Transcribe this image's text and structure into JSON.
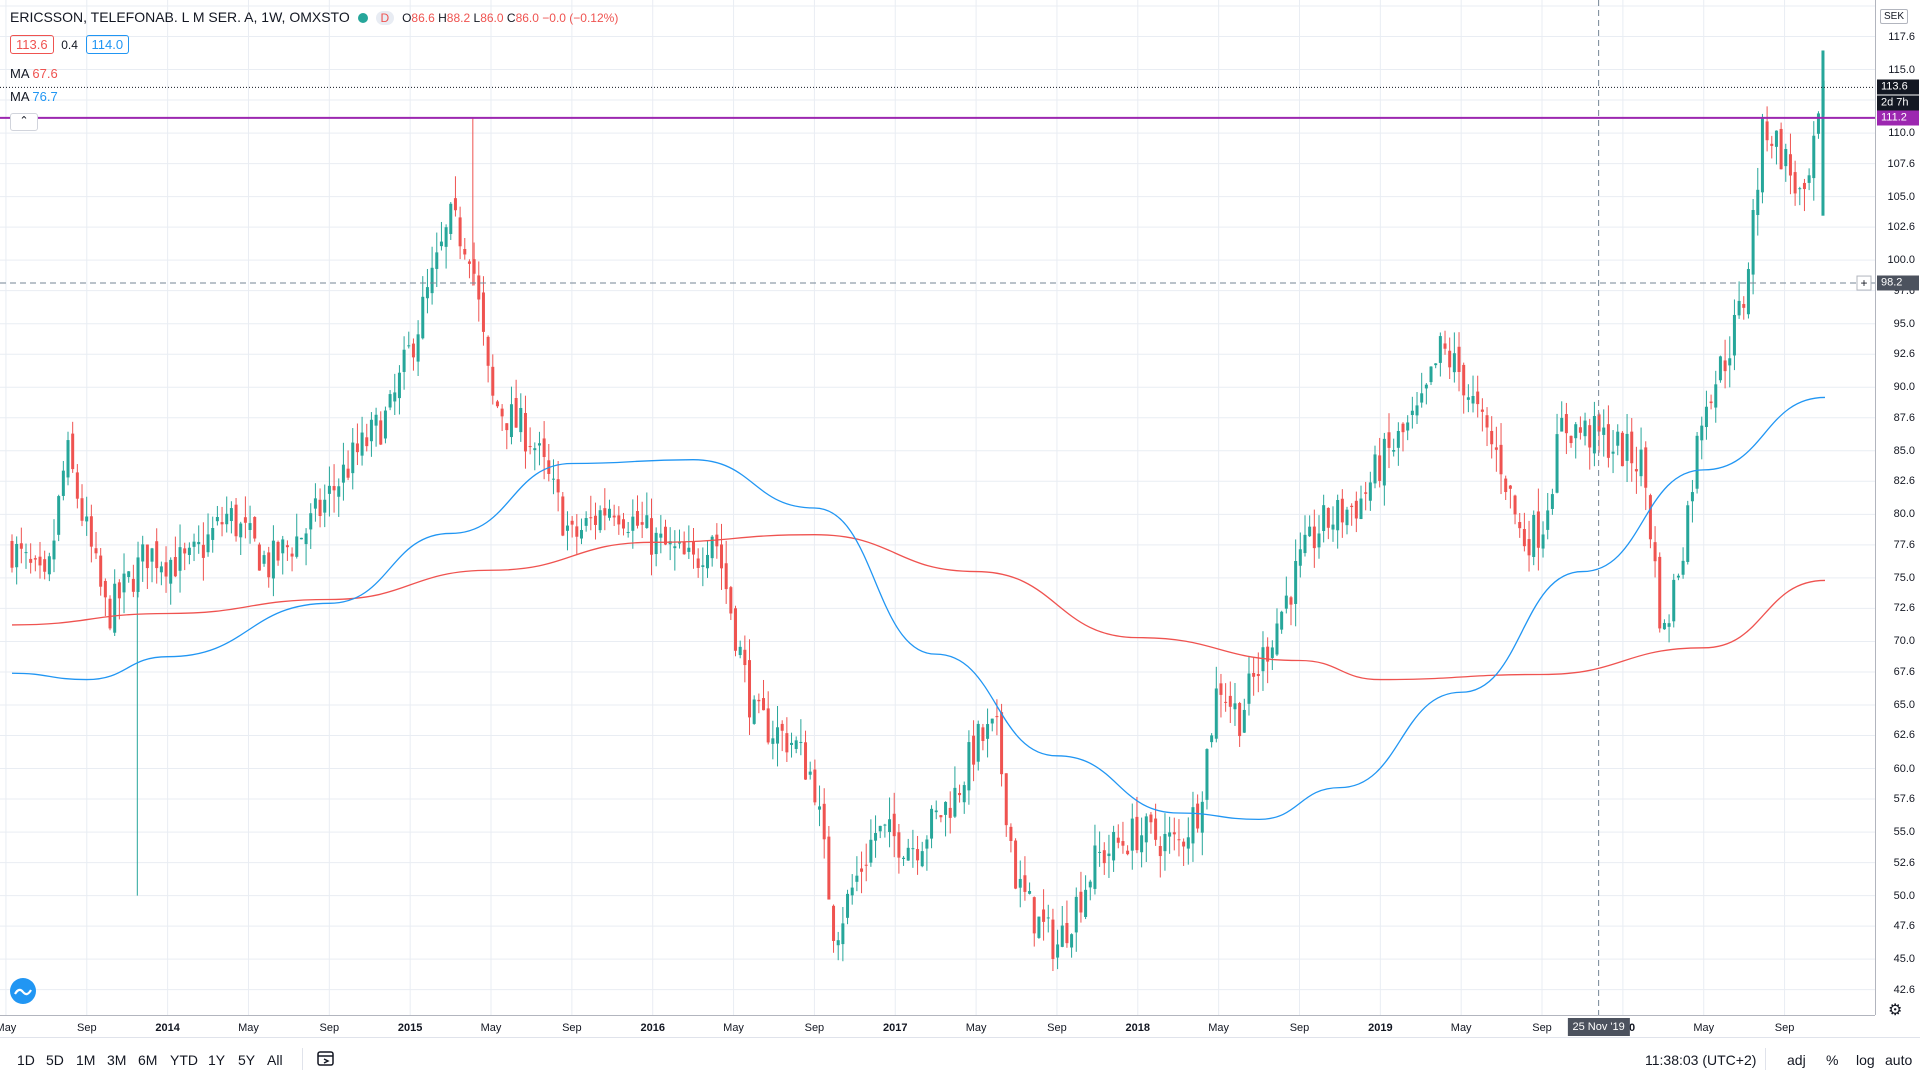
{
  "legend": {
    "symbol": "ERICSSON, TELEFONAB. L M SER. A",
    "interval": "1W",
    "exchange": "OMXSTO",
    "interval_badge": "D",
    "open_key": "O",
    "open": "86.6",
    "high_key": "H",
    "high": "88.2",
    "low_key": "L",
    "low": "86.0",
    "close_key": "C",
    "close": "86.0",
    "change": "−0.0 (−0.12%)",
    "bid": "113.6",
    "spread": "0.4",
    "ask": "114.0",
    "ma1_label": "MA",
    "ma1_value": "67.6",
    "ma1_color": "#ef5350",
    "ma2_label": "MA",
    "ma2_value": "76.7",
    "ma2_color": "#2196f3",
    "collapse_icon": "chevron-up-icon"
  },
  "price_axis": {
    "currency": "SEK",
    "ticks": [
      "120.0",
      "117.6",
      "115.0",
      "112.6",
      "110.0",
      "107.6",
      "105.0",
      "102.6",
      "100.0",
      "97.6",
      "95.0",
      "92.6",
      "90.0",
      "87.6",
      "85.0",
      "82.6",
      "80.0",
      "77.6",
      "75.0",
      "72.6",
      "70.0",
      "67.6",
      "65.0",
      "62.6",
      "60.0",
      "57.6",
      "55.0",
      "52.6",
      "50.0",
      "47.6",
      "45.0",
      "42.6"
    ],
    "last_price_label": "113.6",
    "countdown_label": "2d 7h",
    "hline_label": "111.2",
    "cursor_label": "98.2",
    "settings_icon": "gear-icon"
  },
  "time_axis": {
    "ticks": [
      {
        "label": "May",
        "year": false
      },
      {
        "label": "Sep",
        "year": false
      },
      {
        "label": "2014",
        "year": true
      },
      {
        "label": "May",
        "year": false
      },
      {
        "label": "Sep",
        "year": false
      },
      {
        "label": "2015",
        "year": true
      },
      {
        "label": "May",
        "year": false
      },
      {
        "label": "Sep",
        "year": false
      },
      {
        "label": "2016",
        "year": true
      },
      {
        "label": "May",
        "year": false
      },
      {
        "label": "Sep",
        "year": false
      },
      {
        "label": "2017",
        "year": true
      },
      {
        "label": "May",
        "year": false
      },
      {
        "label": "Sep",
        "year": false
      },
      {
        "label": "2018",
        "year": true
      },
      {
        "label": "May",
        "year": false
      },
      {
        "label": "Sep",
        "year": false
      },
      {
        "label": "2019",
        "year": true
      },
      {
        "label": "May",
        "year": false
      },
      {
        "label": "Sep",
        "year": false
      },
      {
        "label": "2020",
        "year": true
      },
      {
        "label": "May",
        "year": false
      },
      {
        "label": "Sep",
        "year": false
      }
    ],
    "cursor_label": "25 Nov '19"
  },
  "toolbar": {
    "ranges": [
      "1D",
      "5D",
      "1M",
      "3M",
      "6M",
      "YTD",
      "1Y",
      "5Y",
      "All"
    ],
    "goto_icon": "calendar-goto-icon",
    "clock": "11:38:03 (UTC+2)",
    "adj": "adj",
    "percent": "%",
    "log": "log",
    "auto": "auto"
  },
  "colors": {
    "up": "#26a69a",
    "down": "#ef5350",
    "hline": "#9c27b0",
    "grid": "#e9edf3"
  },
  "chart_data": {
    "type": "candlestick",
    "title": "ERICSSON, TELEFONAB. L M SER. A, 1W, OMXSTO",
    "ylim": [
      41.0,
      120.0
    ],
    "x_range": [
      "2013-05",
      "2020-11"
    ],
    "horizontal_line": 111.2,
    "crosshair": {
      "price": 98.2,
      "date": "25 Nov '19"
    },
    "price_path": [
      [
        "2013-05",
        78
      ],
      [
        "2013-07",
        74
      ],
      [
        "2013-08",
        85
      ],
      [
        "2013-10",
        72
      ],
      [
        "2013-12",
        77
      ],
      [
        "2014-02",
        76
      ],
      [
        "2014-04",
        80
      ],
      [
        "2014-06",
        76
      ],
      [
        "2014-08",
        79
      ],
      [
        "2014-10",
        84
      ],
      [
        "2014-12",
        88
      ],
      [
        "2015-02",
        98
      ],
      [
        "2015-03",
        103
      ],
      [
        "2015-04",
        101
      ],
      [
        "2015-05",
        89
      ],
      [
        "2015-07",
        86
      ],
      [
        "2015-09",
        78
      ],
      [
        "2015-11",
        81
      ],
      [
        "2016-01",
        78
      ],
      [
        "2016-03",
        76
      ],
      [
        "2016-04",
        79
      ],
      [
        "2016-06",
        64
      ],
      [
        "2016-08",
        62
      ],
      [
        "2016-09",
        59
      ],
      [
        "2016-10",
        47
      ],
      [
        "2016-12",
        55
      ],
      [
        "2017-02",
        54
      ],
      [
        "2017-04",
        58
      ],
      [
        "2017-05",
        62
      ],
      [
        "2017-06",
        63
      ],
      [
        "2017-07",
        51
      ],
      [
        "2017-08",
        48
      ],
      [
        "2017-09",
        46
      ],
      [
        "2017-11",
        53
      ],
      [
        "2018-01",
        55
      ],
      [
        "2018-03",
        54
      ],
      [
        "2018-04",
        57
      ],
      [
        "2018-05",
        67
      ],
      [
        "2018-06",
        64
      ],
      [
        "2018-07",
        68
      ],
      [
        "2018-09",
        76
      ],
      [
        "2018-10",
        79
      ],
      [
        "2018-12",
        81
      ],
      [
        "2019-01",
        84
      ],
      [
        "2019-03",
        88
      ],
      [
        "2019-04",
        93
      ],
      [
        "2019-05",
        91
      ],
      [
        "2019-06",
        87
      ],
      [
        "2019-07",
        84
      ],
      [
        "2019-08",
        78
      ],
      [
        "2019-09",
        79
      ],
      [
        "2019-10",
        87
      ],
      [
        "2019-12",
        86
      ],
      [
        "2020-02",
        84
      ],
      [
        "2020-03",
        70
      ],
      [
        "2020-04",
        78
      ],
      [
        "2020-05",
        89
      ],
      [
        "2020-06",
        92
      ],
      [
        "2020-07",
        97
      ],
      [
        "2020-08",
        111
      ],
      [
        "2020-09",
        108
      ],
      [
        "2020-10",
        104
      ],
      [
        "2020-11",
        113.6
      ]
    ],
    "series": [
      {
        "name": "MA",
        "color": "#ef5350",
        "points": [
          [
            "2013-05",
            71.3
          ],
          [
            "2014-01",
            72.2
          ],
          [
            "2014-09",
            73.3
          ],
          [
            "2015-05",
            75.6
          ],
          [
            "2016-01",
            77.8
          ],
          [
            "2016-09",
            78.4
          ],
          [
            "2017-05",
            75.5
          ],
          [
            "2018-01",
            70.3
          ],
          [
            "2018-09",
            68.5
          ],
          [
            "2019-01",
            67.0
          ],
          [
            "2019-09",
            67.4
          ],
          [
            "2020-05",
            69.5
          ],
          [
            "2020-11",
            74.8
          ]
        ]
      },
      {
        "name": "MA",
        "color": "#2196f3",
        "points": [
          [
            "2013-05",
            67.5
          ],
          [
            "2013-09",
            67.0
          ],
          [
            "2014-01",
            68.8
          ],
          [
            "2014-09",
            73.0
          ],
          [
            "2015-03",
            78.5
          ],
          [
            "2015-09",
            84.0
          ],
          [
            "2016-03",
            84.3
          ],
          [
            "2016-09",
            80.5
          ],
          [
            "2017-03",
            69.0
          ],
          [
            "2017-09",
            61.0
          ],
          [
            "2018-03",
            56.5
          ],
          [
            "2018-07",
            56.0
          ],
          [
            "2018-11",
            58.5
          ],
          [
            "2019-05",
            66.0
          ],
          [
            "2019-11",
            75.5
          ],
          [
            "2020-05",
            83.5
          ],
          [
            "2020-11",
            89.2
          ]
        ]
      }
    ]
  }
}
